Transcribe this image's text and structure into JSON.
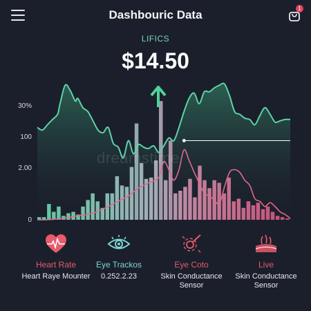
{
  "header": {
    "title": "Dashbouric Data",
    "cart_badge": "1",
    "menu_icon": "menu-icon",
    "cart_icon": "cart-icon"
  },
  "summary": {
    "label": "LIFICS",
    "amount": "$14.50",
    "trend_icon": "arrow-up-icon"
  },
  "watermark": "dreamstime",
  "colors": {
    "background": "#1b1f2b",
    "teal": "#5ed3a6",
    "pink": "#e06a8a",
    "gray": "#a9b4c0"
  },
  "chart_data": {
    "type": "bar",
    "y_tick_labels": [
      "30%",
      "100",
      "2.00",
      "0"
    ],
    "ylim": [
      0,
      100
    ],
    "bars": [
      2,
      2,
      12,
      6,
      10,
      3,
      5,
      6,
      4,
      10,
      15,
      20,
      14,
      9,
      20,
      20,
      33,
      26,
      25,
      40,
      36,
      43,
      31,
      32,
      45,
      39,
      30,
      25,
      20,
      22,
      25,
      31,
      17,
      41,
      30,
      24,
      30,
      28,
      20,
      32,
      14,
      16,
      9,
      14,
      11,
      13,
      8,
      10,
      6,
      3,
      2,
      1
    ],
    "highlight_bars": [
      {
        "index": 20,
        "value": 73
      },
      {
        "index": 25,
        "value": 90
      },
      {
        "index": 27,
        "value": 60
      }
    ],
    "line_upper": [
      [
        0,
        70
      ],
      [
        2,
        68
      ],
      [
        4,
        72
      ],
      [
        6,
        76
      ],
      [
        8,
        80
      ],
      [
        9,
        88
      ],
      [
        11,
        102
      ],
      [
        13,
        98
      ],
      [
        15,
        90
      ],
      [
        16,
        92
      ],
      [
        18,
        85
      ],
      [
        20,
        82
      ],
      [
        22,
        75
      ],
      [
        24,
        68
      ],
      [
        26,
        66
      ],
      [
        28,
        70
      ],
      [
        30,
        58
      ],
      [
        32,
        55
      ],
      [
        34,
        47
      ],
      [
        36,
        60
      ],
      [
        38,
        50
      ],
      [
        40,
        57
      ],
      [
        42,
        55
      ],
      [
        44,
        54
      ],
      [
        46,
        56
      ],
      [
        48,
        51
      ],
      [
        50,
        56
      ],
      [
        52,
        62
      ],
      [
        54,
        60
      ],
      [
        56,
        70
      ],
      [
        58,
        82
      ],
      [
        60,
        92
      ],
      [
        62,
        96
      ],
      [
        64,
        88
      ],
      [
        66,
        97
      ],
      [
        68,
        97
      ],
      [
        70,
        100
      ],
      [
        72,
        102
      ],
      [
        74,
        103
      ],
      [
        76,
        94
      ],
      [
        78,
        82
      ],
      [
        80,
        80
      ],
      [
        82,
        77
      ],
      [
        84,
        76
      ],
      [
        86,
        72
      ],
      [
        88,
        79
      ],
      [
        90,
        85
      ],
      [
        92,
        80
      ],
      [
        94,
        74
      ],
      [
        96,
        75
      ],
      [
        98,
        76
      ],
      [
        100,
        76
      ]
    ],
    "line_lower": [
      [
        0,
        0
      ],
      [
        4,
        0
      ],
      [
        10,
        1
      ],
      [
        16,
        3
      ],
      [
        22,
        5
      ],
      [
        28,
        10
      ],
      [
        32,
        14
      ],
      [
        36,
        18
      ],
      [
        40,
        24
      ],
      [
        44,
        28
      ],
      [
        48,
        32
      ],
      [
        50,
        44
      ],
      [
        52,
        38
      ],
      [
        54,
        30
      ],
      [
        56,
        38
      ],
      [
        58,
        53
      ],
      [
        60,
        45
      ],
      [
        62,
        36
      ],
      [
        64,
        28
      ],
      [
        66,
        20
      ],
      [
        68,
        18
      ],
      [
        70,
        15
      ],
      [
        72,
        12
      ],
      [
        74,
        25
      ],
      [
        76,
        36
      ],
      [
        78,
        38
      ],
      [
        80,
        36
      ],
      [
        82,
        30
      ],
      [
        84,
        26
      ],
      [
        86,
        16
      ],
      [
        88,
        14
      ],
      [
        90,
        10
      ],
      [
        92,
        13
      ],
      [
        94,
        10
      ],
      [
        96,
        6
      ],
      [
        98,
        4
      ],
      [
        100,
        1
      ]
    ],
    "reference_line": {
      "y": 60,
      "x_from": 58,
      "x_to": 100
    },
    "line_colors": {
      "upper": "#5ed3a6",
      "lower": "#e06a8a",
      "reference": "#ffffff"
    }
  },
  "metrics": [
    {
      "icon": "heart-pulse-icon",
      "title": "Heart Rate",
      "subtitle": "Heart Raye Mounter",
      "title_color": "#e85a6c"
    },
    {
      "icon": "eye-icon",
      "title": "Eye Trackos",
      "subtitle": "0.252.2.23",
      "title_color": "#7ed7d4"
    },
    {
      "icon": "skin-sensor-icon",
      "title": "Eye Coto",
      "subtitle": "Skin Conductance Sensor",
      "title_color": "#e85a6c"
    },
    {
      "icon": "skin-layers-icon",
      "title": "Live",
      "subtitle": "Skin Conductance Sensor",
      "title_color": "#e85a6c"
    }
  ]
}
